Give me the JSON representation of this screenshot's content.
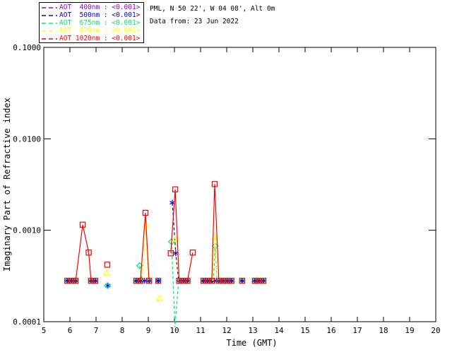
{
  "header": {
    "station_line": "PML, N 50 22', W 04 08', Alt 0m",
    "date_line": "Data from: 23 Jun 2022"
  },
  "legend": {
    "entries": [
      {
        "wavelength": "400nm",
        "label": "AOT  400nm : <0.001>",
        "color": "#9400D3"
      },
      {
        "wavelength": "500nm",
        "label": "AOT  500nm : <0.001>",
        "color": "#0000FF"
      },
      {
        "wavelength": "675nm",
        "label": "AOT  675nm : <0.001>",
        "color": "#00E673"
      },
      {
        "wavelength": "870nm",
        "label": "AOT  870nm : <0.001>",
        "color": "#FFFF00"
      },
      {
        "wavelength": "1020nm",
        "label": "AOT 1020nm : <0.001>",
        "color": "#FF0000"
      }
    ]
  },
  "chart_data": {
    "type": "line",
    "title": "",
    "xlabel": "Time (GMT)",
    "ylabel": "Imaginary Part of Refractive index",
    "x_scale": "linear",
    "y_scale": "log",
    "xlim": [
      5,
      20
    ],
    "ylim": [
      0.0001,
      0.1
    ],
    "x_ticks": [
      5,
      6,
      7,
      8,
      9,
      10,
      11,
      12,
      13,
      14,
      15,
      16,
      17,
      18,
      19,
      20
    ],
    "y_ticks": [
      {
        "value": 0.1,
        "label": "0.1000"
      },
      {
        "value": 0.01,
        "label": "0.0100"
      },
      {
        "value": 0.001,
        "label": "0.0010"
      },
      {
        "value": 0.0001,
        "label": "0.0001"
      }
    ],
    "grid": false,
    "legend_position": "top-left-outside",
    "baseline": {
      "value": 0.00028,
      "times": [
        5.9,
        6.06,
        6.22,
        6.81,
        6.97,
        8.54,
        8.7,
        9.03,
        9.38,
        10.18,
        10.34,
        10.5,
        11.11,
        11.27,
        11.43,
        11.7,
        11.86,
        12.02,
        12.18,
        12.59,
        13.08,
        13.24,
        13.4
      ],
      "overlay_markers": [
        "triangle-yellow",
        "diamond-green",
        "asterisk-blue"
      ]
    },
    "series": [
      {
        "name": "AOT 400nm",
        "color": "#9400D3",
        "marker": "plus",
        "line": "dashed",
        "segments": [],
        "points": []
      },
      {
        "name": "AOT 500nm",
        "color": "#0000FF",
        "marker": "asterisk",
        "line": "dashed",
        "segments": [
          [
            [
              9.92,
              0.002
            ],
            [
              10.05,
              0.00056
            ],
            [
              10.16,
              0.00028
            ]
          ]
        ],
        "points": [
          [
            7.45,
            0.000248
          ],
          [
            8.86,
            0.00028
          ],
          [
            9.38,
            0.00028
          ],
          [
            9.92,
            0.002
          ],
          [
            10.05,
            0.00056
          ],
          [
            11.54,
            0.00028
          ]
        ]
      },
      {
        "name": "AOT 675nm",
        "color": "#00E673",
        "marker": "diamond",
        "line": "dashed",
        "segments": [
          [
            [
              8.67,
              0.00041
            ],
            [
              8.76,
              0.00028
            ]
          ],
          [
            [
              9.89,
              0.00075
            ],
            [
              10.02,
              8.7e-05
            ],
            [
              10.16,
              0.00028
            ]
          ],
          [
            [
              11.49,
              0.00028
            ],
            [
              11.56,
              0.00067
            ],
            [
              11.63,
              0.00028
            ]
          ]
        ],
        "points": [
          [
            7.44,
            0.000248
          ],
          [
            8.67,
            0.00041
          ],
          [
            9.89,
            0.00075
          ],
          [
            11.56,
            0.00067
          ]
        ]
      },
      {
        "name": "AOT 870nm",
        "color": "#FFFF00",
        "marker": "triangle",
        "line": "dashed",
        "segments": [
          [
            [
              8.78,
              0.00028
            ],
            [
              8.9,
              0.00115
            ],
            [
              9.0,
              0.00028
            ]
          ],
          [
            [
              10.05,
              0.0008
            ],
            [
              10.16,
              0.00028
            ]
          ],
          [
            [
              11.46,
              0.00028
            ],
            [
              11.55,
              0.00085
            ],
            [
              11.64,
              0.00028
            ]
          ]
        ],
        "points": [
          [
            7.41,
            0.00034
          ],
          [
            8.9,
            0.00115
          ],
          [
            9.43,
            0.00018
          ],
          [
            10.05,
            0.0008
          ],
          [
            11.55,
            0.00085
          ]
        ]
      },
      {
        "name": "AOT 1020nm",
        "color": "#FF0000",
        "marker": "square",
        "line": "solid",
        "segments": [
          [
            [
              5.9,
              0.00028
            ],
            [
              6.06,
              0.00028
            ],
            [
              6.22,
              0.00028
            ],
            [
              6.49,
              0.00115
            ],
            [
              6.72,
              0.00057
            ],
            [
              6.81,
              0.00028
            ],
            [
              6.97,
              0.00028
            ]
          ],
          [
            [
              8.54,
              0.00028
            ],
            [
              8.7,
              0.00028
            ],
            [
              8.89,
              0.00155
            ],
            [
              9.03,
              0.00028
            ]
          ],
          [
            [
              9.86,
              0.00056
            ],
            [
              10.03,
              0.0028
            ],
            [
              10.18,
              0.00028
            ],
            [
              10.34,
              0.00028
            ],
            [
              10.5,
              0.00028
            ],
            [
              10.7,
              0.00057
            ]
          ],
          [
            [
              11.11,
              0.00028
            ],
            [
              11.27,
              0.00028
            ],
            [
              11.43,
              0.00028
            ],
            [
              11.54,
              0.0032
            ],
            [
              11.7,
              0.00028
            ],
            [
              11.86,
              0.00028
            ],
            [
              12.02,
              0.00028
            ],
            [
              12.18,
              0.00028
            ]
          ],
          [
            [
              13.08,
              0.00028
            ],
            [
              13.24,
              0.00028
            ],
            [
              13.4,
              0.00028
            ]
          ]
        ],
        "points": [
          [
            5.9,
            0.00028
          ],
          [
            6.06,
            0.00028
          ],
          [
            6.22,
            0.00028
          ],
          [
            6.49,
            0.00115
          ],
          [
            6.72,
            0.00057
          ],
          [
            6.81,
            0.00028
          ],
          [
            6.97,
            0.00028
          ],
          [
            7.43,
            0.00042
          ],
          [
            8.54,
            0.00028
          ],
          [
            8.7,
            0.00028
          ],
          [
            8.89,
            0.00155
          ],
          [
            9.03,
            0.00028
          ],
          [
            9.38,
            0.00028
          ],
          [
            9.86,
            0.00056
          ],
          [
            10.03,
            0.0028
          ],
          [
            10.18,
            0.00028
          ],
          [
            10.34,
            0.00028
          ],
          [
            10.5,
            0.00028
          ],
          [
            10.7,
            0.00057
          ],
          [
            11.11,
            0.00028
          ],
          [
            11.27,
            0.00028
          ],
          [
            11.43,
            0.00028
          ],
          [
            11.54,
            0.0032
          ],
          [
            11.7,
            0.00028
          ],
          [
            11.86,
            0.00028
          ],
          [
            12.02,
            0.00028
          ],
          [
            12.18,
            0.00028
          ],
          [
            12.59,
            0.00028
          ],
          [
            13.08,
            0.00028
          ],
          [
            13.24,
            0.00028
          ],
          [
            13.4,
            0.00028
          ]
        ]
      }
    ]
  }
}
